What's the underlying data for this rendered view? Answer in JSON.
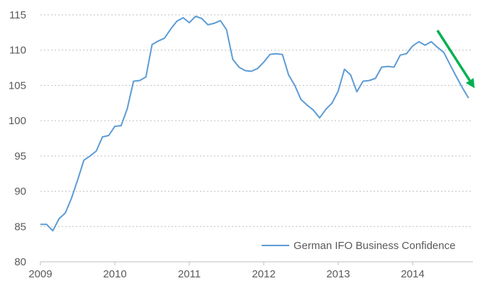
{
  "chart_data": {
    "type": "line",
    "title": "",
    "xlabel": "",
    "ylabel": "",
    "ylim": [
      80,
      115
    ],
    "yticks": [
      80,
      85,
      90,
      95,
      100,
      105,
      110,
      115
    ],
    "xticks": [
      "2009",
      "2010",
      "2011",
      "2012",
      "2013",
      "2014"
    ],
    "xlim": [
      "2009-01",
      "2014-10"
    ],
    "grid": "horizontal dotted",
    "legend": "bottom-right",
    "series": [
      {
        "name": "German IFO Business Confidence",
        "color": "#5B9BD5",
        "x": [
          "2009-01",
          "2009-02",
          "2009-03",
          "2009-04",
          "2009-05",
          "2009-06",
          "2009-07",
          "2009-08",
          "2009-09",
          "2009-10",
          "2009-11",
          "2009-12",
          "2010-01",
          "2010-02",
          "2010-03",
          "2010-04",
          "2010-05",
          "2010-06",
          "2010-07",
          "2010-08",
          "2010-09",
          "2010-10",
          "2010-11",
          "2010-12",
          "2011-01",
          "2011-02",
          "2011-03",
          "2011-04",
          "2011-05",
          "2011-06",
          "2011-07",
          "2011-08",
          "2011-09",
          "2011-10",
          "2011-11",
          "2011-12",
          "2012-01",
          "2012-02",
          "2012-03",
          "2012-04",
          "2012-05",
          "2012-06",
          "2012-07",
          "2012-08",
          "2012-09",
          "2012-10",
          "2012-11",
          "2012-12",
          "2013-01",
          "2013-02",
          "2013-03",
          "2013-04",
          "2013-05",
          "2013-06",
          "2013-07",
          "2013-08",
          "2013-09",
          "2013-10",
          "2013-11",
          "2013-12",
          "2014-01",
          "2014-02",
          "2014-03",
          "2014-04",
          "2014-05",
          "2014-06",
          "2014-07",
          "2014-08",
          "2014-09",
          "2014-10"
        ],
        "values": [
          85.3,
          85.3,
          84.4,
          86.1,
          86.9,
          89.0,
          91.6,
          94.4,
          95.0,
          95.7,
          97.7,
          97.9,
          99.2,
          99.3,
          101.7,
          105.6,
          105.7,
          106.2,
          110.8,
          111.3,
          111.7,
          113.0,
          114.1,
          114.6,
          113.9,
          114.8,
          114.5,
          113.6,
          113.8,
          114.2,
          112.9,
          108.7,
          107.6,
          107.1,
          107.0,
          107.4,
          108.3,
          109.4,
          109.5,
          109.4,
          106.5,
          105.0,
          103.0,
          102.2,
          101.5,
          100.4,
          101.6,
          102.5,
          104.2,
          107.3,
          106.5,
          104.1,
          105.6,
          105.7,
          106.0,
          107.6,
          107.7,
          107.6,
          109.3,
          109.5,
          110.6,
          111.2,
          110.7,
          111.2,
          110.4,
          109.7,
          108.0,
          106.3,
          104.7,
          103.2
        ]
      }
    ],
    "annotations": [
      {
        "type": "arrow",
        "color": "#00B050",
        "from": [
          "2014-05",
          112.8
        ],
        "to": [
          "2014-11",
          104.6
        ]
      }
    ]
  }
}
